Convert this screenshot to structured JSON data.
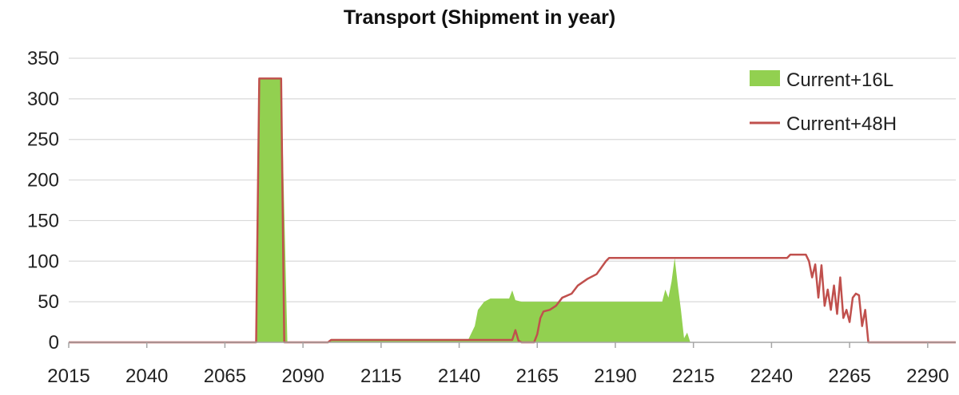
{
  "chart_data": {
    "type": "area",
    "title": "Transport (Shipment in year)",
    "xlabel": "",
    "ylabel": "",
    "xlim": [
      2015,
      2299
    ],
    "ylim": [
      0,
      350
    ],
    "x_ticks": [
      2015,
      2040,
      2065,
      2090,
      2115,
      2140,
      2165,
      2190,
      2215,
      2240,
      2265,
      2290
    ],
    "y_ticks": [
      0,
      50,
      100,
      150,
      200,
      250,
      300,
      350
    ],
    "grid": "horizontal",
    "legend_position": "top-right",
    "series": [
      {
        "name": "Current+16L",
        "type": "area",
        "color": "#92d050",
        "points": [
          [
            2015,
            0
          ],
          [
            2075,
            0
          ],
          [
            2076,
            325
          ],
          [
            2083,
            325
          ],
          [
            2085,
            0
          ],
          [
            2098,
            0
          ],
          [
            2099,
            4
          ],
          [
            2143,
            4
          ],
          [
            2145,
            20
          ],
          [
            2146,
            40
          ],
          [
            2148,
            50
          ],
          [
            2150,
            54
          ],
          [
            2156,
            54
          ],
          [
            2157,
            64
          ],
          [
            2158,
            52
          ],
          [
            2160,
            50
          ],
          [
            2205,
            50
          ],
          [
            2206,
            65
          ],
          [
            2207,
            55
          ],
          [
            2208,
            75
          ],
          [
            2209,
            104
          ],
          [
            2210,
            70
          ],
          [
            2211,
            40
          ],
          [
            2212,
            5
          ],
          [
            2213,
            12
          ],
          [
            2214,
            0
          ],
          [
            2299,
            0
          ]
        ]
      },
      {
        "name": "Current+48H",
        "type": "line",
        "color": "#c0504d",
        "points": [
          [
            2015,
            0
          ],
          [
            2075,
            0
          ],
          [
            2076,
            325
          ],
          [
            2083,
            325
          ],
          [
            2084,
            0
          ],
          [
            2098,
            0
          ],
          [
            2099,
            3
          ],
          [
            2157,
            3
          ],
          [
            2158,
            15
          ],
          [
            2159,
            2
          ],
          [
            2160,
            0
          ],
          [
            2164,
            0
          ],
          [
            2165,
            10
          ],
          [
            2166,
            30
          ],
          [
            2167,
            38
          ],
          [
            2169,
            40
          ],
          [
            2171,
            45
          ],
          [
            2173,
            55
          ],
          [
            2176,
            60
          ],
          [
            2178,
            70
          ],
          [
            2181,
            78
          ],
          [
            2184,
            84
          ],
          [
            2187,
            100
          ],
          [
            2188,
            104
          ],
          [
            2245,
            104
          ],
          [
            2246,
            108
          ],
          [
            2251,
            108
          ],
          [
            2252,
            100
          ],
          [
            2253,
            80
          ],
          [
            2254,
            96
          ],
          [
            2255,
            55
          ],
          [
            2256,
            95
          ],
          [
            2257,
            45
          ],
          [
            2258,
            65
          ],
          [
            2259,
            40
          ],
          [
            2260,
            70
          ],
          [
            2261,
            35
          ],
          [
            2262,
            80
          ],
          [
            2263,
            30
          ],
          [
            2264,
            40
          ],
          [
            2265,
            25
          ],
          [
            2266,
            55
          ],
          [
            2267,
            60
          ],
          [
            2268,
            58
          ],
          [
            2269,
            20
          ],
          [
            2270,
            40
          ],
          [
            2271,
            0
          ],
          [
            2299,
            0
          ]
        ]
      }
    ]
  }
}
